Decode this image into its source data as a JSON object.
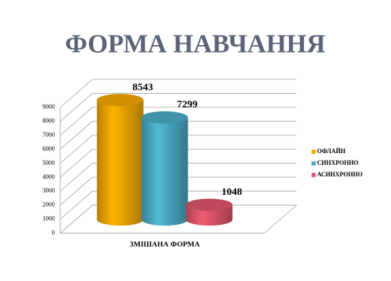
{
  "chart_data": {
    "type": "bar3d",
    "title": "ФОРМА НАВЧАННЯ",
    "categories": [
      "ЗМІШАНА ФОРМА"
    ],
    "series": [
      {
        "name": "ОФЛАЙН",
        "color": "#f5a800",
        "values": [
          8543
        ]
      },
      {
        "name": "СИНХРОННО",
        "color": "#4bacc6",
        "values": [
          7299
        ]
      },
      {
        "name": "АСИНХРОННО",
        "color": "#e0566a",
        "values": [
          1048
        ]
      }
    ],
    "ylim": [
      0,
      9000
    ],
    "yticks": [
      0,
      1000,
      2000,
      3000,
      4000,
      5000,
      6000,
      7000,
      8000,
      9000
    ],
    "grid": true,
    "legend": "right"
  }
}
